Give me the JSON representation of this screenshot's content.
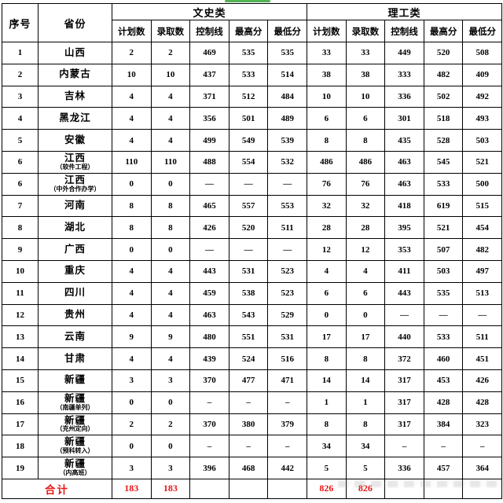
{
  "page": {
    "accent_green": "#53b253",
    "total_red": "#e81717",
    "border_black": "#000000"
  },
  "table": {
    "headers": {
      "serial": "序号",
      "province": "省份",
      "groups": [
        {
          "label": "文史类"
        },
        {
          "label": "理工类"
        }
      ],
      "sub_columns": [
        "计划数",
        "录取数",
        "控制线",
        "最高分",
        "最低分"
      ]
    },
    "rows": [
      {
        "no": "1",
        "province": "山西",
        "sub": "",
        "wen": [
          "2",
          "2",
          "469",
          "535",
          "535"
        ],
        "li": [
          "33",
          "33",
          "449",
          "520",
          "508"
        ]
      },
      {
        "no": "2",
        "province": "内蒙古",
        "sub": "",
        "wen": [
          "10",
          "10",
          "437",
          "533",
          "514"
        ],
        "li": [
          "38",
          "38",
          "333",
          "482",
          "409"
        ]
      },
      {
        "no": "3",
        "province": "吉林",
        "sub": "",
        "wen": [
          "4",
          "4",
          "371",
          "512",
          "484"
        ],
        "li": [
          "10",
          "10",
          "336",
          "502",
          "492"
        ]
      },
      {
        "no": "4",
        "province": "黑龙江",
        "sub": "",
        "wen": [
          "4",
          "4",
          "356",
          "501",
          "489"
        ],
        "li": [
          "6",
          "6",
          "301",
          "518",
          "493"
        ]
      },
      {
        "no": "5",
        "province": "安徽",
        "sub": "",
        "wen": [
          "4",
          "4",
          "499",
          "549",
          "539"
        ],
        "li": [
          "8",
          "8",
          "435",
          "528",
          "503"
        ]
      },
      {
        "no": "6",
        "province": "江西",
        "sub": "（软件工程）",
        "wen": [
          "110",
          "110",
          "488",
          "554",
          "532"
        ],
        "li": [
          "486",
          "486",
          "463",
          "545",
          "521"
        ]
      },
      {
        "no": "6",
        "province": "江西",
        "sub": "（中外合作办学）",
        "wen": [
          "0",
          "0",
          "—",
          "—",
          "—"
        ],
        "li": [
          "76",
          "76",
          "463",
          "533",
          "500"
        ]
      },
      {
        "no": "7",
        "province": "河南",
        "sub": "",
        "wen": [
          "8",
          "8",
          "465",
          "557",
          "553"
        ],
        "li": [
          "32",
          "32",
          "418",
          "619",
          "515"
        ]
      },
      {
        "no": "8",
        "province": "湖北",
        "sub": "",
        "wen": [
          "8",
          "8",
          "426",
          "520",
          "511"
        ],
        "li": [
          "28",
          "28",
          "395",
          "521",
          "454"
        ]
      },
      {
        "no": "9",
        "province": "广西",
        "sub": "",
        "wen": [
          "0",
          "0",
          "—",
          "—",
          "—"
        ],
        "li": [
          "12",
          "12",
          "353",
          "507",
          "482"
        ]
      },
      {
        "no": "10",
        "province": "重庆",
        "sub": "",
        "wen": [
          "4",
          "4",
          "443",
          "531",
          "523"
        ],
        "li": [
          "4",
          "4",
          "411",
          "503",
          "497"
        ]
      },
      {
        "no": "11",
        "province": "四川",
        "sub": "",
        "wen": [
          "4",
          "4",
          "459",
          "538",
          "523"
        ],
        "li": [
          "6",
          "6",
          "443",
          "535",
          "513"
        ]
      },
      {
        "no": "12",
        "province": "贵州",
        "sub": "",
        "wen": [
          "4",
          "4",
          "463",
          "543",
          "529"
        ],
        "li": [
          "0",
          "0",
          "—",
          "—",
          "—"
        ]
      },
      {
        "no": "13",
        "province": "云南",
        "sub": "",
        "wen": [
          "9",
          "9",
          "480",
          "551",
          "531"
        ],
        "li": [
          "17",
          "17",
          "440",
          "533",
          "511"
        ]
      },
      {
        "no": "14",
        "province": "甘肃",
        "sub": "",
        "wen": [
          "4",
          "4",
          "439",
          "524",
          "516"
        ],
        "li": [
          "8",
          "8",
          "372",
          "460",
          "451"
        ]
      },
      {
        "no": "15",
        "province": "新疆",
        "sub": "",
        "wen": [
          "3",
          "3",
          "370",
          "477",
          "471"
        ],
        "li": [
          "14",
          "14",
          "317",
          "453",
          "426"
        ]
      },
      {
        "no": "16",
        "province": "新疆",
        "sub": "（南疆单列）",
        "wen": [
          "0",
          "0",
          "–",
          "–",
          "–"
        ],
        "li": [
          "1",
          "1",
          "317",
          "428",
          "428"
        ]
      },
      {
        "no": "17",
        "province": "新疆",
        "sub": "（克州定向）",
        "wen": [
          "2",
          "2",
          "370",
          "380",
          "379"
        ],
        "li": [
          "8",
          "8",
          "317",
          "384",
          "323"
        ]
      },
      {
        "no": "18",
        "province": "新疆",
        "sub": "（预科转入）",
        "wen": [
          "0",
          "0",
          "–",
          "–",
          "–"
        ],
        "li": [
          "34",
          "34",
          "–",
          "–",
          "–"
        ]
      },
      {
        "no": "19",
        "province": "新疆",
        "sub": "（内高班）",
        "wen": [
          "3",
          "3",
          "396",
          "468",
          "442"
        ],
        "li": [
          "5",
          "5",
          "336",
          "457",
          "364"
        ]
      }
    ],
    "total_row": {
      "label": "合计",
      "wen": [
        "183",
        "183",
        "",
        "",
        ""
      ],
      "li": [
        "826",
        "826",
        "",
        "",
        ""
      ]
    }
  }
}
